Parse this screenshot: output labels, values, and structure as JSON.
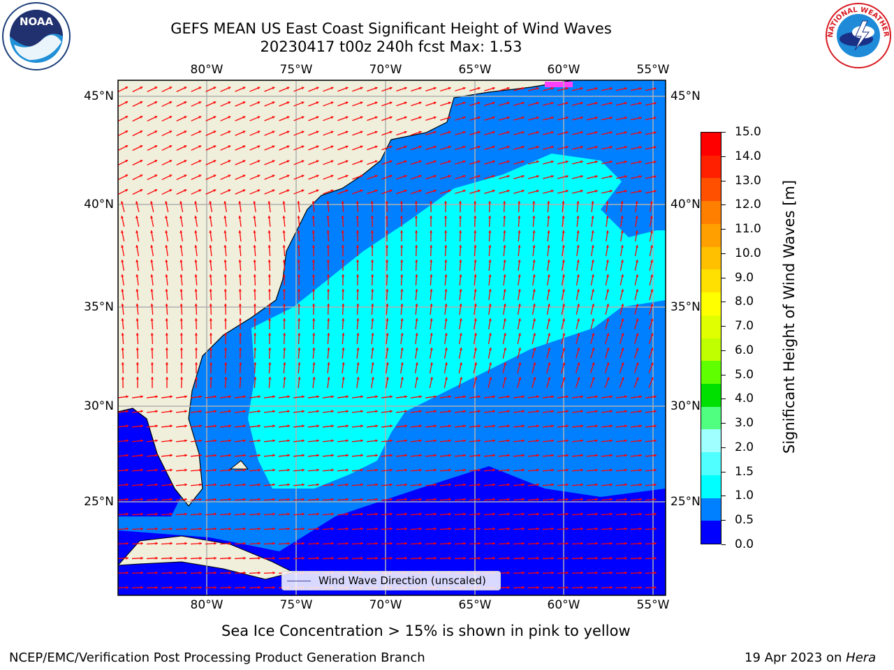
{
  "header": {
    "title_line1": "GEFS MEAN US East Coast Significant Height of Wind Waves",
    "title_line2": "20230417 t00z 240h fcst   Max: 1.53"
  },
  "map": {
    "lon_ticks": [
      "80°W",
      "75°W",
      "70°W",
      "65°W",
      "60°W",
      "55°W"
    ],
    "lat_ticks": [
      "45°N",
      "40°N",
      "35°N",
      "30°N",
      "25°N"
    ],
    "legend_label": "Wind Wave Direction (unscaled)",
    "colors": {
      "land": "#efefdc",
      "band_0_0.5": "#0000ff",
      "band_0.5_1.0": "#0080ff",
      "band_1.0_1.5": "#00ffff",
      "arrow": "#ff0000",
      "grid": "#b0b0b0"
    }
  },
  "colorbar": {
    "label": "Significant Height of Wind Waves [m]",
    "tick_labels": [
      "15.0",
      "14.0",
      "13.0",
      "12.0",
      "11.0",
      "10.0",
      "9.0",
      "8.0",
      "7.0",
      "6.0",
      "5.0",
      "4.0",
      "3.0",
      "2.0",
      "1.5",
      "1.0",
      "0.5",
      "0.0"
    ],
    "colors_top_to_bottom": [
      "#ff0000",
      "#ff2000",
      "#ff5000",
      "#ff8000",
      "#ffa000",
      "#ffc000",
      "#ffe000",
      "#ffff00",
      "#e0ff00",
      "#c0ff00",
      "#60ff00",
      "#00e000",
      "#50ff80",
      "#a0ffff",
      "#50ffff",
      "#00ffff",
      "#0080ff",
      "#0000ff"
    ]
  },
  "footer": {
    "sea_ice_note": "Sea Ice Concentration > 15% is shown in pink to yellow",
    "left": "NCEP/EMC/Verification Post Processing Product Generation Branch",
    "right_prefix": "19 Apr 2023 on ",
    "right_machine": "Hera"
  },
  "logos": {
    "noaa_text": "NOAA",
    "nws_text": "NATIONAL WEATHER SERVICE"
  }
}
